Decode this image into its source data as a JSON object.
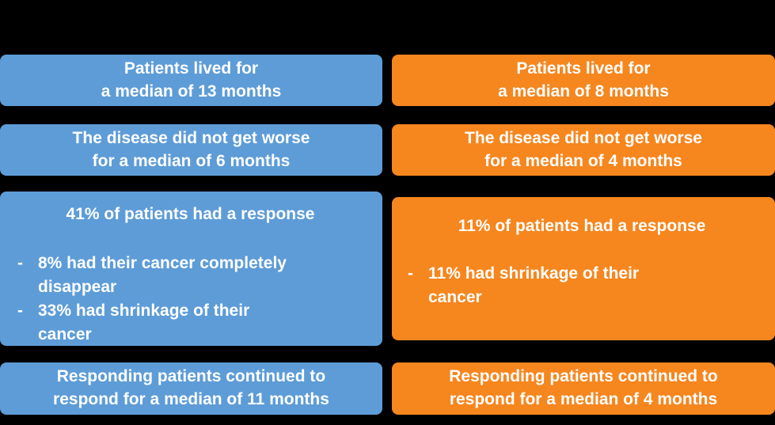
{
  "background": "#000000",
  "bullet_marker": "-",
  "left": {
    "color": "#5d9cd7",
    "survival": "Patients lived for\na median of 13 months",
    "progression": "The disease did not get worse\nfor a median of 6 months",
    "response_heading": "41% of patients had a response",
    "response_bullets": [
      "8% had their cancer completely\ndisappear",
      "33% had shrinkage of their\ncancer"
    ],
    "duration": "Responding patients continued to\nrespond for a median of 11 months"
  },
  "right": {
    "color": "#f6861e",
    "survival": "Patients lived for\na median of 8 months",
    "progression": "The disease did not get worse\nfor a median of 4 months",
    "response_heading": "11% of patients had a response",
    "response_bullets": [
      "11% had shrinkage of their\ncancer"
    ],
    "duration": "Responding patients continued to\nrespond for a median of 4 months"
  }
}
